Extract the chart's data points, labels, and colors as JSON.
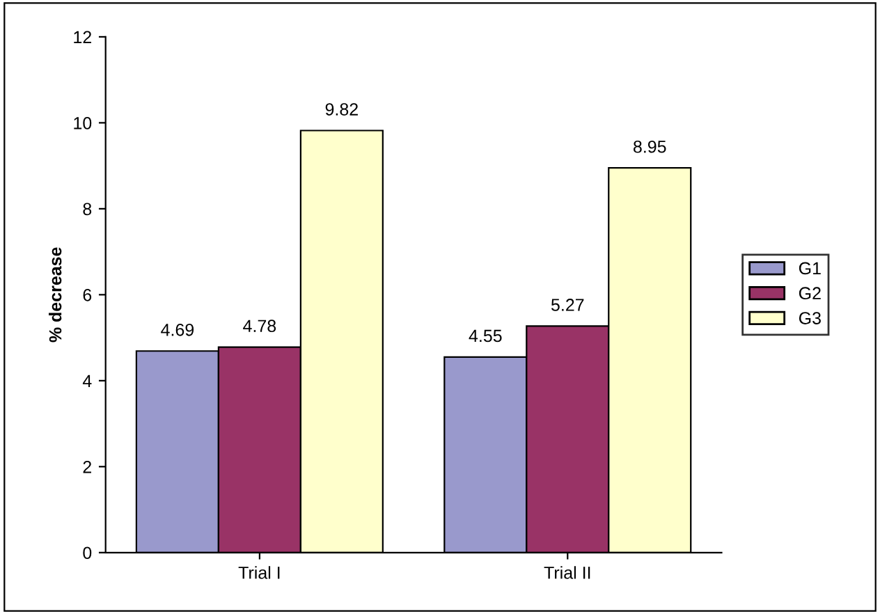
{
  "chart_data": {
    "type": "bar",
    "ylabel": "% decrease",
    "categories": [
      "Trial I",
      "Trial II"
    ],
    "series": [
      {
        "name": "G1",
        "color": "#9999cc",
        "values": [
          4.69,
          4.55
        ]
      },
      {
        "name": "G2",
        "color": "#993366",
        "values": [
          4.78,
          5.27
        ]
      },
      {
        "name": "G3",
        "color": "#ffffcc",
        "values": [
          9.82,
          8.95
        ]
      }
    ],
    "ylim": [
      0,
      12
    ],
    "yticks": [
      0,
      2,
      4,
      6,
      8,
      10,
      12
    ],
    "data_labels": true,
    "legend": "right",
    "grid": false
  }
}
